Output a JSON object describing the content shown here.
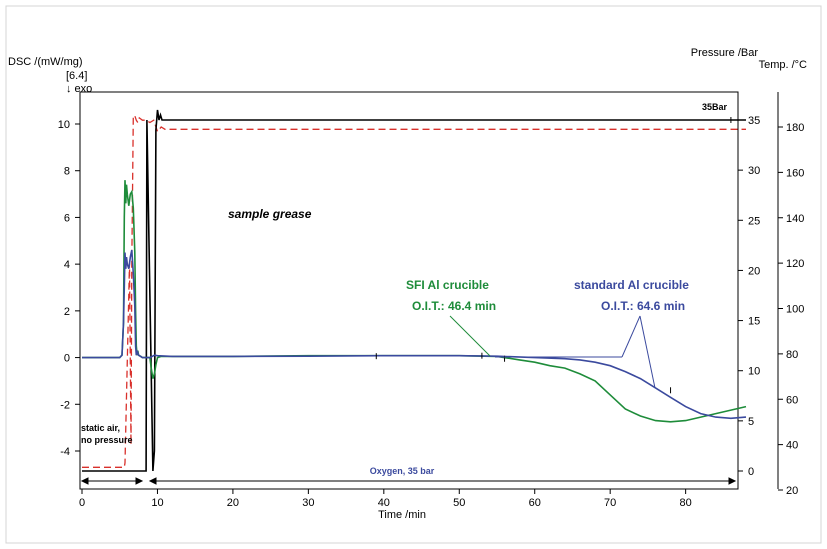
{
  "chart_data": {
    "type": "line",
    "xlabel": "Time /min",
    "ylabel_left": "DSC /(mW/mg)",
    "ylabel_left_extra": "[6.4]",
    "exo_label": "↓ exo",
    "ylabel_right_pressure": "Pressure /Bar",
    "ylabel_right_temp": "Temp. /°C",
    "xlim": [
      0,
      88
    ],
    "x_ticks": [
      0,
      10,
      20,
      30,
      40,
      50,
      60,
      70,
      80
    ],
    "y_left_lim": [
      -5,
      11
    ],
    "y_left_ticks": [
      10,
      8,
      6,
      4,
      2,
      0,
      -2,
      -4
    ],
    "y_pressure_lim": [
      -1,
      37.5
    ],
    "y_pressure_ticks": [
      35,
      30,
      25,
      20,
      15,
      10,
      5,
      0
    ],
    "y_temp_lim": [
      20,
      195
    ],
    "y_temp_ticks": [
      180,
      160,
      140,
      120,
      100,
      80,
      60,
      40,
      20
    ],
    "colors": {
      "dsc_green": "#1e8c3a",
      "dsc_blue": "#3b4a9e",
      "pressure": "#000000",
      "temperature": "#d9302b"
    },
    "series": [
      {
        "name": "SFI Al crucible",
        "axis": "dsc",
        "x": [
          0,
          5,
          5.3,
          5.5,
          5.6,
          5.7,
          5.8,
          5.9,
          6.0,
          6.2,
          6.4,
          6.6,
          6.8,
          7.0,
          7.1,
          7.2,
          7.3,
          7.4,
          7.5,
          7.8,
          8.0,
          8.5,
          9.0,
          9.2,
          9.4,
          9.6,
          9.8,
          10,
          10.5,
          12,
          20,
          30,
          40,
          50,
          55,
          58,
          60,
          62,
          64,
          66,
          68,
          70,
          72,
          74,
          76,
          78,
          80,
          82,
          84,
          86,
          88
        ],
        "y": [
          0,
          0,
          0.1,
          1.5,
          6.0,
          7.6,
          6.6,
          7.4,
          7.0,
          6.5,
          7.0,
          7.1,
          6.4,
          4.5,
          2.0,
          0.5,
          0.1,
          0.3,
          0.1,
          0.05,
          0,
          0,
          0,
          -0.5,
          -0.9,
          -0.7,
          -0.3,
          0,
          0.05,
          0.05,
          0.05,
          0.08,
          0.08,
          0.08,
          0.05,
          -0.1,
          -0.2,
          -0.35,
          -0.45,
          -0.7,
          -1.0,
          -1.6,
          -2.2,
          -2.5,
          -2.7,
          -2.75,
          -2.7,
          -2.55,
          -2.4,
          -2.25,
          -2.1
        ]
      },
      {
        "name": "standard Al crucible",
        "axis": "dsc",
        "x": [
          0,
          5,
          5.3,
          5.5,
          5.6,
          5.7,
          5.8,
          5.9,
          6.0,
          6.2,
          6.4,
          6.6,
          6.8,
          7.0,
          7.1,
          7.2,
          7.3,
          7.5,
          8.0,
          8.5,
          9.0,
          9.3,
          9.6,
          10,
          12,
          20,
          30,
          40,
          50,
          55,
          60,
          64,
          66,
          68,
          70,
          72,
          74,
          76,
          78,
          80,
          82,
          84,
          86,
          88
        ],
        "y": [
          0,
          0,
          0.1,
          1.5,
          3.0,
          4.5,
          3.8,
          4.3,
          4.0,
          3.8,
          4.3,
          4.6,
          3.6,
          2.2,
          0.5,
          0.1,
          0.3,
          0.1,
          0,
          0,
          0,
          0.05,
          0.1,
          0.08,
          0.05,
          0.05,
          0.06,
          0.08,
          0.08,
          0.06,
          0.0,
          -0.05,
          -0.1,
          -0.2,
          -0.35,
          -0.6,
          -0.9,
          -1.3,
          -1.7,
          -2.1,
          -2.4,
          -2.55,
          -2.6,
          -2.55
        ]
      },
      {
        "name": "Pressure",
        "axis": "pressure",
        "x": [
          0,
          8.5,
          8.6,
          9.4,
          9.6,
          9.8,
          10.0,
          10.2,
          10.4,
          10.6,
          88
        ],
        "y": [
          0,
          0,
          35,
          0,
          2,
          34,
          36,
          35,
          35.5,
          35,
          35
        ]
      },
      {
        "name": "Temperature",
        "axis": "temp",
        "x": [
          0,
          5.6,
          5.7,
          6.3,
          6.5,
          6.6,
          6.8,
          7.0,
          7.2,
          7.4,
          7.6,
          8.0,
          8.5,
          9.0,
          9.5,
          10,
          10.5,
          11,
          20,
          30,
          40,
          50,
          60,
          70,
          80,
          88
        ],
        "y": [
          30,
          30,
          32,
          120,
          40,
          120,
          185,
          185,
          183,
          182,
          184,
          183,
          183,
          182,
          183,
          178,
          180,
          179,
          179,
          179,
          179,
          179,
          179,
          179,
          179,
          179
        ]
      }
    ],
    "pressure_label": "35Bar",
    "annotations": {
      "sample": "sample grease",
      "sfi_label": "SFI Al crucible",
      "sfi_oit": "O.I.T.: 46.4 min",
      "std_label": "standard Al crucible",
      "std_oit": "O.I.T.: 64.6 min",
      "static_air_1": "static air,",
      "static_air_2": "no pressure",
      "oxygen": "Oxygen, 35 bar"
    }
  }
}
